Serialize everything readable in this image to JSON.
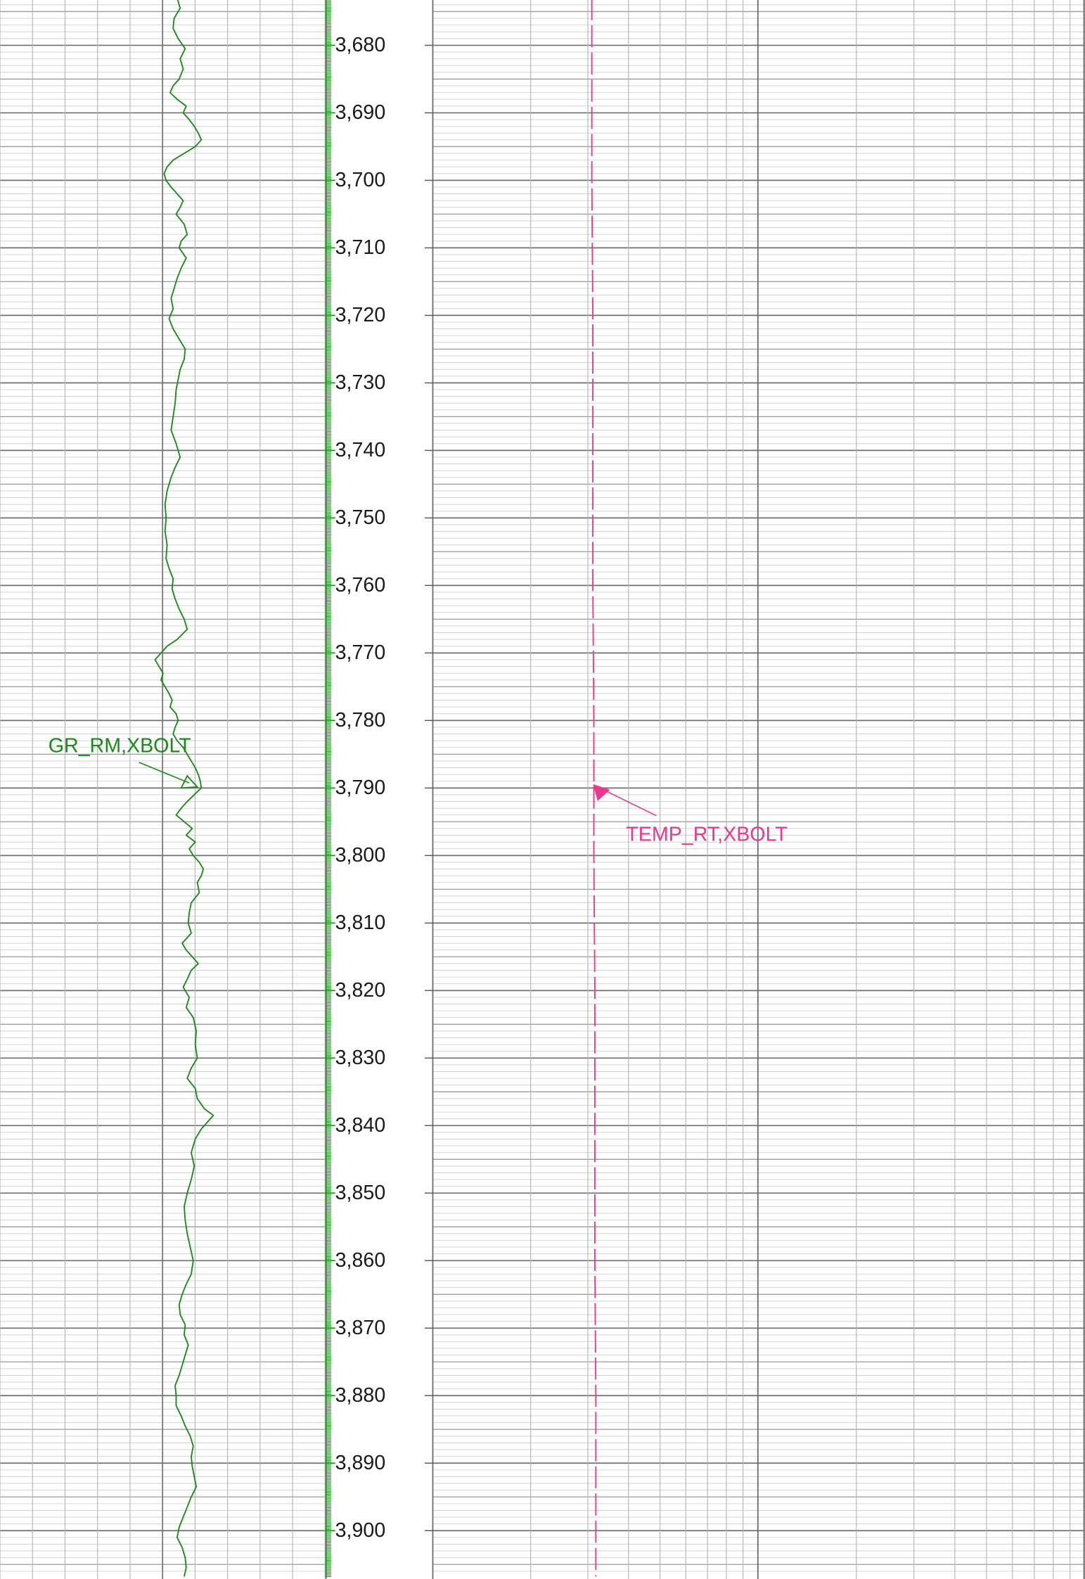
{
  "chart_data": {
    "type": "line",
    "depth_range": [
      3673.0,
      3906.8
    ],
    "depth_ticks": [
      3680,
      3690,
      3700,
      3710,
      3720,
      3730,
      3740,
      3750,
      3760,
      3770,
      3780,
      3790,
      3800,
      3810,
      3820,
      3830,
      3840,
      3850,
      3860,
      3870,
      3880,
      3890,
      3900
    ],
    "depth_tick_labels": [
      "3,680",
      "3,690",
      "3,700",
      "3,710",
      "3,720",
      "3,730",
      "3,740",
      "3,750",
      "3,760",
      "3,770",
      "3,780",
      "3,790",
      "3,800",
      "3,810",
      "3,820",
      "3,830",
      "3,840",
      "3,850",
      "3,860",
      "3,870",
      "3,880",
      "3,890",
      "3,900"
    ],
    "grid": true,
    "curves": [
      {
        "name": "GR_RM,XBOLT",
        "track": "left",
        "color": "#1a8a1a",
        "line_style": "solid",
        "points": [
          [
            3673.0,
            176
          ],
          [
            3674.5,
            179
          ],
          [
            3676.0,
            173
          ],
          [
            3677.5,
            172
          ],
          [
            3679.0,
            177
          ],
          [
            3680.5,
            184
          ],
          [
            3682.0,
            179
          ],
          [
            3683.5,
            182
          ],
          [
            3685.0,
            178
          ],
          [
            3686.0,
            172
          ],
          [
            3687.0,
            169
          ],
          [
            3688.0,
            176
          ],
          [
            3689.0,
            185
          ],
          [
            3690.0,
            182
          ],
          [
            3691.0,
            188
          ],
          [
            3692.0,
            193
          ],
          [
            3693.0,
            197
          ],
          [
            3694.0,
            200
          ],
          [
            3695.0,
            194
          ],
          [
            3696.0,
            183
          ],
          [
            3697.0,
            172
          ],
          [
            3698.0,
            166
          ],
          [
            3699.0,
            163
          ],
          [
            3700.0,
            165
          ],
          [
            3701.0,
            170
          ],
          [
            3702.0,
            176
          ],
          [
            3703.0,
            182
          ],
          [
            3704.0,
            179
          ],
          [
            3705.0,
            175
          ],
          [
            3706.5,
            183
          ],
          [
            3708.0,
            186
          ],
          [
            3709.0,
            180
          ],
          [
            3710.0,
            178
          ],
          [
            3711.5,
            185
          ],
          [
            3713.0,
            180
          ],
          [
            3714.5,
            176
          ],
          [
            3716.0,
            173
          ],
          [
            3717.5,
            170
          ],
          [
            3719.0,
            172
          ],
          [
            3720.5,
            168
          ],
          [
            3722.0,
            172
          ],
          [
            3723.5,
            178
          ],
          [
            3725.0,
            184
          ],
          [
            3726.5,
            183
          ],
          [
            3728.0,
            179
          ],
          [
            3729.5,
            177
          ],
          [
            3731.0,
            175
          ],
          [
            3733.0,
            174
          ],
          [
            3735.0,
            172
          ],
          [
            3737.0,
            170
          ],
          [
            3739.0,
            175
          ],
          [
            3741.0,
            179
          ],
          [
            3742.5,
            174
          ],
          [
            3744.0,
            170
          ],
          [
            3746.0,
            166
          ],
          [
            3748.0,
            164
          ],
          [
            3750.0,
            165
          ],
          [
            3752.0,
            164
          ],
          [
            3754.0,
            166
          ],
          [
            3756.0,
            165
          ],
          [
            3757.5,
            168
          ],
          [
            3759.0,
            172
          ],
          [
            3760.5,
            171
          ],
          [
            3762.0,
            174
          ],
          [
            3763.5,
            178
          ],
          [
            3765.0,
            183
          ],
          [
            3766.5,
            186
          ],
          [
            3768.0,
            176
          ],
          [
            3769.0,
            166
          ],
          [
            3770.0,
            160
          ],
          [
            3771.0,
            154
          ],
          [
            3772.0,
            158
          ],
          [
            3773.0,
            162
          ],
          [
            3774.0,
            160
          ],
          [
            3775.0,
            164
          ],
          [
            3776.0,
            168
          ],
          [
            3777.0,
            171
          ],
          [
            3778.0,
            169
          ],
          [
            3779.0,
            175
          ],
          [
            3780.0,
            177
          ],
          [
            3781.0,
            174
          ],
          [
            3782.0,
            172
          ],
          [
            3783.0,
            176
          ],
          [
            3784.0,
            182
          ],
          [
            3785.0,
            186
          ],
          [
            3786.0,
            190
          ],
          [
            3787.0,
            194
          ],
          [
            3788.0,
            197
          ],
          [
            3789.0,
            199
          ],
          [
            3790.0,
            200
          ],
          [
            3791.0,
            193
          ],
          [
            3792.0,
            186
          ],
          [
            3793.0,
            180
          ],
          [
            3794.0,
            175
          ],
          [
            3795.0,
            183
          ],
          [
            3796.0,
            191
          ],
          [
            3797.0,
            185
          ],
          [
            3798.0,
            194
          ],
          [
            3799.0,
            188
          ],
          [
            3800.0,
            192
          ],
          [
            3801.0,
            198
          ],
          [
            3802.0,
            202
          ],
          [
            3803.0,
            200
          ],
          [
            3804.0,
            196
          ],
          [
            3805.5,
            198
          ],
          [
            3807.0,
            190
          ],
          [
            3808.5,
            188
          ],
          [
            3810.0,
            187
          ],
          [
            3811.5,
            190
          ],
          [
            3813.0,
            181
          ],
          [
            3814.0,
            185
          ],
          [
            3815.0,
            191
          ],
          [
            3816.0,
            197
          ],
          [
            3817.0,
            190
          ],
          [
            3818.0,
            187
          ],
          [
            3819.5,
            182
          ],
          [
            3821.0,
            188
          ],
          [
            3822.5,
            185
          ],
          [
            3824.0,
            192
          ],
          [
            3826.0,
            195
          ],
          [
            3828.0,
            194
          ],
          [
            3830.0,
            196
          ],
          [
            3831.5,
            190
          ],
          [
            3833.0,
            186
          ],
          [
            3834.5,
            194
          ],
          [
            3836.0,
            196
          ],
          [
            3837.5,
            203
          ],
          [
            3838.5,
            212
          ],
          [
            3839.5,
            206
          ],
          [
            3840.5,
            200
          ],
          [
            3842.0,
            194
          ],
          [
            3844.0,
            190
          ],
          [
            3846.0,
            193
          ],
          [
            3848.0,
            190
          ],
          [
            3850.0,
            186
          ],
          [
            3852.0,
            183
          ],
          [
            3854.0,
            184
          ],
          [
            3856.0,
            186
          ],
          [
            3858.0,
            189
          ],
          [
            3860.0,
            192
          ],
          [
            3862.0,
            190
          ],
          [
            3863.5,
            185
          ],
          [
            3865.0,
            181
          ],
          [
            3866.5,
            178
          ],
          [
            3868.0,
            179
          ],
          [
            3869.5,
            184
          ],
          [
            3871.0,
            183
          ],
          [
            3872.5,
            187
          ],
          [
            3874.0,
            184
          ],
          [
            3875.5,
            181
          ],
          [
            3877.0,
            178
          ],
          [
            3878.5,
            174
          ],
          [
            3880.0,
            175
          ],
          [
            3881.5,
            175
          ],
          [
            3883.0,
            180
          ],
          [
            3884.5,
            184
          ],
          [
            3886.0,
            189
          ],
          [
            3887.5,
            192
          ],
          [
            3889.0,
            190
          ],
          [
            3890.5,
            191
          ],
          [
            3892.0,
            193
          ],
          [
            3893.5,
            195
          ],
          [
            3895.0,
            190
          ],
          [
            3896.5,
            186
          ],
          [
            3898.0,
            182
          ],
          [
            3899.5,
            178
          ],
          [
            3901.0,
            176
          ],
          [
            3902.5,
            181
          ],
          [
            3904.0,
            184
          ],
          [
            3905.5,
            185
          ],
          [
            3906.8,
            183
          ]
        ]
      },
      {
        "name": "TEMP_RT,XBOLT",
        "track": "right",
        "color": "#e8388f",
        "line_style": "dashed",
        "points": [
          [
            3673.0,
            588
          ],
          [
            3700.0,
            588
          ],
          [
            3720.0,
            589
          ],
          [
            3740.0,
            589
          ],
          [
            3760.0,
            589
          ],
          [
            3780.0,
            590
          ],
          [
            3790.0,
            590
          ],
          [
            3800.0,
            590
          ],
          [
            3820.0,
            591
          ],
          [
            3840.0,
            591
          ],
          [
            3860.0,
            591
          ],
          [
            3880.0,
            592
          ],
          [
            3906.8,
            592
          ]
        ]
      }
    ]
  }
}
